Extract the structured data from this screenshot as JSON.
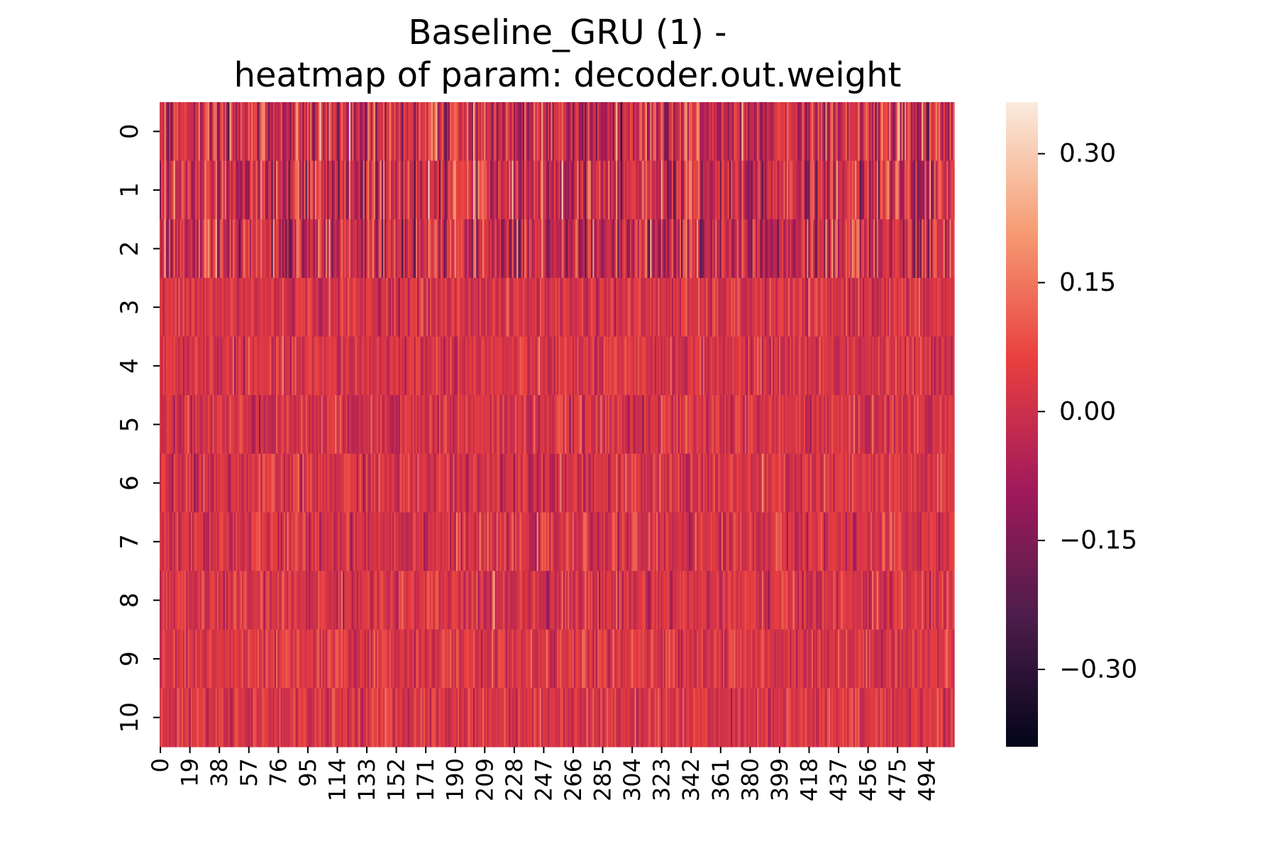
{
  "chart_data": {
    "type": "heatmap",
    "title": "Baseline_GRU (1) -",
    "subtitle": "heatmap of param: decoder.out.weight",
    "rows": [
      "0",
      "1",
      "2",
      "3",
      "4",
      "5",
      "6",
      "7",
      "8",
      "9",
      "10"
    ],
    "columns_count": 512,
    "x_tick_labels": [
      "0",
      "19",
      "38",
      "57",
      "76",
      "95",
      "114",
      "133",
      "152",
      "171",
      "190",
      "209",
      "228",
      "247",
      "266",
      "285",
      "304",
      "323",
      "342",
      "361",
      "380",
      "399",
      "418",
      "437",
      "456",
      "475",
      "494"
    ],
    "colorbar": {
      "ticks": [
        0.3,
        0.15,
        0.0,
        -0.15,
        -0.3
      ],
      "tick_labels": [
        "0.30",
        "0.15",
        "0.00",
        "−0.15",
        "−0.30"
      ],
      "range": [
        -0.39,
        0.36
      ],
      "colormap": "rocket",
      "stops": [
        "#03051a",
        "#4c1d4b",
        "#a11a5b",
        "#e83f3f",
        "#f69c73",
        "#faebdd"
      ]
    },
    "row_value_summary": [
      {
        "row": "0",
        "mean": 0.0,
        "std": 0.1
      },
      {
        "row": "1",
        "mean": 0.0,
        "std": 0.1
      },
      {
        "row": "2",
        "mean": 0.0,
        "std": 0.1
      },
      {
        "row": "3",
        "mean": 0.02,
        "std": 0.045
      },
      {
        "row": "4",
        "mean": 0.02,
        "std": 0.045
      },
      {
        "row": "5",
        "mean": 0.02,
        "std": 0.05
      },
      {
        "row": "6",
        "mean": 0.02,
        "std": 0.05
      },
      {
        "row": "7",
        "mean": 0.02,
        "std": 0.05
      },
      {
        "row": "8",
        "mean": 0.02,
        "std": 0.05
      },
      {
        "row": "9",
        "mean": 0.03,
        "std": 0.045
      },
      {
        "row": "10",
        "mean": 0.03,
        "std": 0.045
      }
    ],
    "grid": false,
    "legend": "colorbar-right"
  }
}
